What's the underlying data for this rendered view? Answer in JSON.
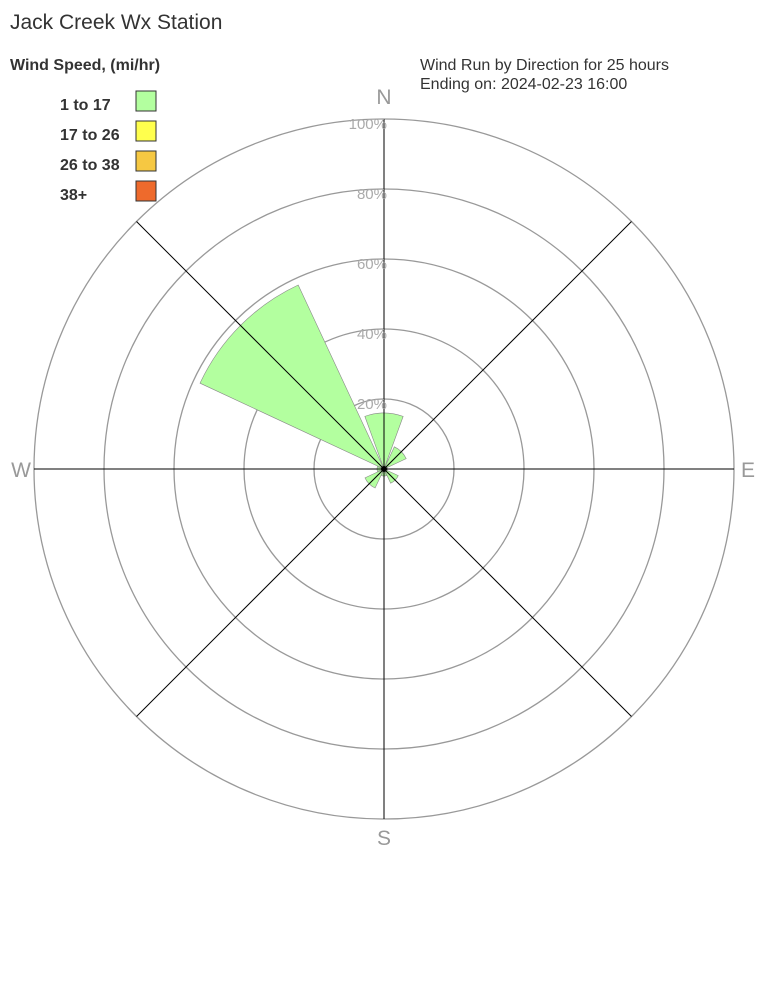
{
  "chart_data": {
    "type": "wind-rose",
    "title": "Jack Creek Wx Station",
    "subtitle_lines": [
      "Wind Run by Direction for 25 hours",
      "Ending on: 2024-02-23 16:00"
    ],
    "legend_title": "Wind Speed, (mi/hr)",
    "legend_placement": "top-left",
    "legend": [
      {
        "label": "1 to 17",
        "color": "#b3ff9f"
      },
      {
        "label": "17 to 26",
        "color": "#ffff4d"
      },
      {
        "label": "26 to 38",
        "color": "#f6c842"
      },
      {
        "label": "38+",
        "color": "#ee6a2c"
      }
    ],
    "compass_labels": {
      "N": "N",
      "E": "E",
      "S": "S",
      "W": "W"
    },
    "radial_ticks": [
      "20%",
      "40%",
      "60%",
      "80%",
      "100%"
    ],
    "radial_range": [
      0,
      100
    ],
    "directions": [
      "N",
      "NE",
      "E",
      "SE",
      "S",
      "SW",
      "W",
      "NW"
    ],
    "series": [
      {
        "name": "1 to 17",
        "values": [
          16,
          7,
          1,
          4.5,
          2,
          6,
          2,
          58
        ]
      },
      {
        "name": "17 to 26",
        "values": [
          0,
          0,
          0,
          0,
          0,
          0,
          0,
          0
        ]
      },
      {
        "name": "26 to 38",
        "values": [
          0,
          0,
          0,
          0,
          0,
          0,
          0,
          0
        ]
      },
      {
        "name": "38+",
        "values": [
          0,
          0,
          0,
          0,
          0,
          0,
          0,
          0
        ]
      }
    ]
  }
}
